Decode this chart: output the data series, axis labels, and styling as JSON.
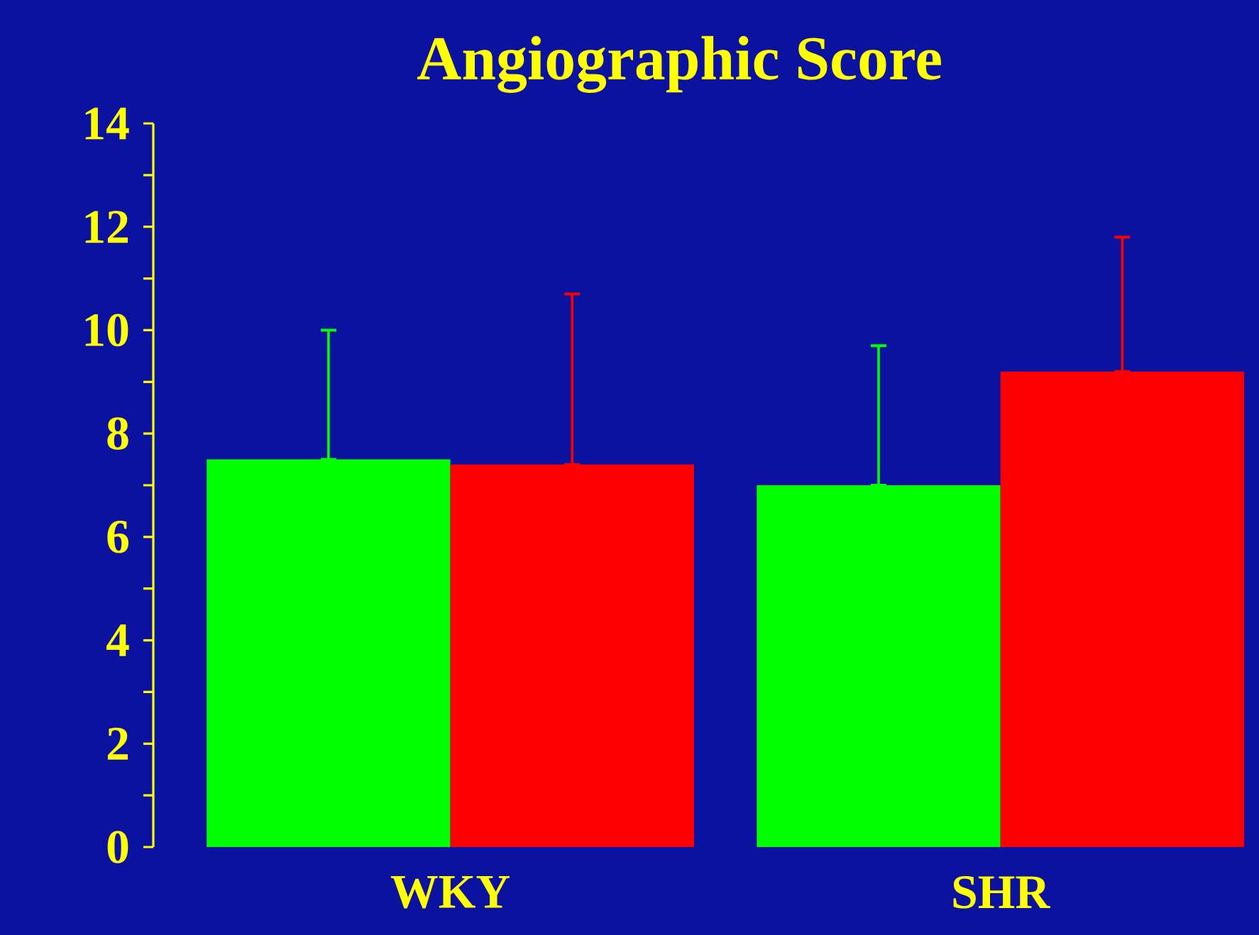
{
  "chart_data": {
    "type": "bar",
    "title": "Angiographic Score",
    "categories": [
      "WKY",
      "SHR"
    ],
    "series": [
      {
        "color": "#00ff00",
        "values": [
          7.5,
          7.0
        ],
        "errors": [
          [
            7.5,
            10.0
          ],
          [
            7.0,
            9.7
          ]
        ]
      },
      {
        "color": "#ff0000",
        "values": [
          7.4,
          9.2
        ],
        "errors": [
          [
            7.4,
            10.7
          ],
          [
            9.2,
            11.8
          ]
        ]
      }
    ],
    "ylim": [
      0,
      14
    ],
    "yticks": [
      0,
      2,
      4,
      6,
      8,
      10,
      12,
      14
    ],
    "grid": false
  }
}
